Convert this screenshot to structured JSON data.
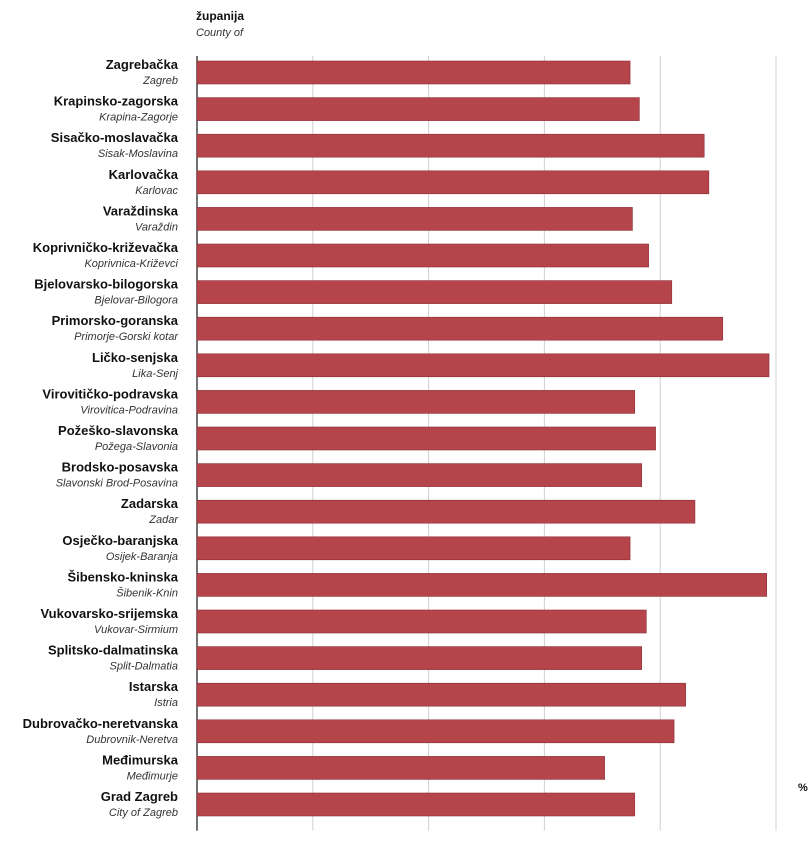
{
  "header": {
    "label_hr": "županija",
    "label_en": "County of"
  },
  "unit": "%",
  "colors": {
    "bar": "#b5444b",
    "bar_stroke": "#8c2f36",
    "grid": "#d0d0d0"
  },
  "chart_data": {
    "type": "bar",
    "orientation": "horizontal",
    "xlim": [
      0,
      25
    ],
    "x_ticks": [
      "0",
      "5",
      "10",
      "15",
      "20",
      "25"
    ],
    "grid": true,
    "categories": [
      {
        "name": "Zagrebačka",
        "name_en": "Zagreb"
      },
      {
        "name": "Krapinsko-zagorska",
        "name_en": "Krapina-Zagorje"
      },
      {
        "name": "Sisačko-moslavačka",
        "name_en": "Sisak-Moslavina"
      },
      {
        "name": "Karlovačka",
        "name_en": "Karlovac"
      },
      {
        "name": "Varaždinska",
        "name_en": "Varaždin"
      },
      {
        "name": "Koprivničko-križevačka",
        "name_en": "Koprivnica-Križevci"
      },
      {
        "name": "Bjelovarsko-bilogorska",
        "name_en": "Bjelovar-Bilogora"
      },
      {
        "name": "Primorsko-goranska",
        "name_en": "Primorje-Gorski kotar"
      },
      {
        "name": "Ličko-senjska",
        "name_en": "Lika-Senj"
      },
      {
        "name": "Virovitičko-podravska",
        "name_en": "Virovitica-Podravina"
      },
      {
        "name": "Požeško-slavonska",
        "name_en": "Požega-Slavonia"
      },
      {
        "name": "Brodsko-posavska",
        "name_en": "Slavonski Brod-Posavina"
      },
      {
        "name": "Zadarska",
        "name_en": "Zadar"
      },
      {
        "name": "Osječko-baranjska",
        "name_en": "Osijek-Baranja"
      },
      {
        "name": "Šibensko-kninska",
        "name_en": "Šibenik-Knin"
      },
      {
        "name": "Vukovarsko-srijemska",
        "name_en": "Vukovar-Sirmium"
      },
      {
        "name": "Splitsko-dalmatinska",
        "name_en": "Split-Dalmatia"
      },
      {
        "name": "Istarska",
        "name_en": "Istria"
      },
      {
        "name": "Dubrovačko-neretvanska",
        "name_en": "Dubrovnik-Neretva"
      },
      {
        "name": "Međimurska",
        "name_en": "Međimurje"
      },
      {
        "name": "Grad Zagreb",
        "name_en": "City of Zagreb"
      }
    ],
    "values": [
      18.7,
      19.1,
      21.9,
      22.1,
      18.8,
      19.5,
      20.5,
      22.7,
      24.7,
      18.9,
      19.8,
      19.2,
      21.5,
      18.7,
      24.6,
      19.4,
      19.2,
      21.1,
      20.6,
      17.6,
      18.9
    ]
  }
}
